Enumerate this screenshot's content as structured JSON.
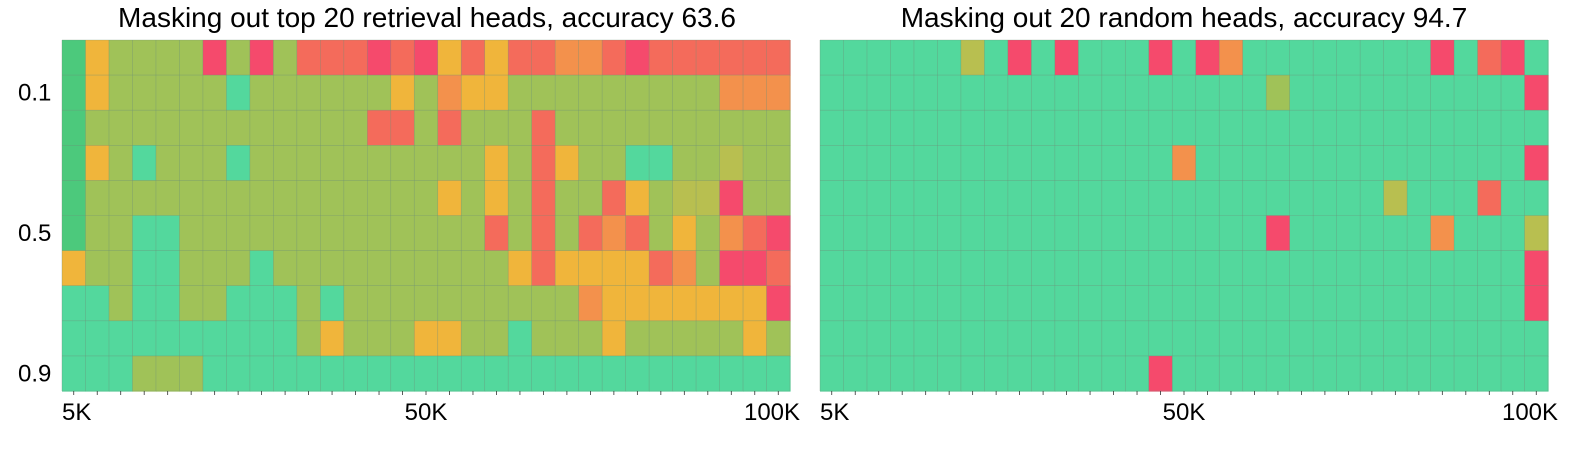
{
  "figure": {
    "panel1_title": "Masking out top 20 retrieval heads, accuracy 63.6",
    "panel2_title": "Masking out 20 random heads, accuracy 94.7"
  },
  "palette": {
    "1": "#53d89d",
    "2": "#4cc97c",
    "3": "#a0c258",
    "4": "#f0b53b",
    "5": "#f3914c",
    "6": "#f46b5b",
    "7": "#f54a6c",
    "8": "#b8bf50",
    "grid": "#6e8f78"
  },
  "chart_data": [
    {
      "type": "heatmap",
      "title": "Masking out top 20 retrieval heads, accuracy 63.6",
      "n_cols": 31,
      "n_rows": 10,
      "x_tick_labels": [
        "5K",
        "50K",
        "100K"
      ],
      "x_tick_cols": [
        0,
        15,
        30
      ],
      "y_tick_labels": [
        "0.1",
        "0.5",
        "0.9"
      ],
      "y_tick_rows": [
        1,
        5,
        9
      ],
      "grid": true,
      "value_encoding": "color codes 1-8 mapped via palette (1 = high score/green, 7 = low score/red)",
      "values": [
        [
          2,
          4,
          3,
          3,
          3,
          3,
          7,
          3,
          7,
          3,
          6,
          6,
          6,
          7,
          6,
          7,
          4,
          6,
          4,
          6,
          6,
          5,
          5,
          6,
          7,
          6,
          6,
          6,
          6,
          6,
          6
        ],
        [
          2,
          4,
          3,
          3,
          3,
          3,
          3,
          1,
          3,
          3,
          3,
          3,
          3,
          3,
          4,
          3,
          5,
          4,
          4,
          3,
          3,
          3,
          3,
          3,
          3,
          3,
          3,
          3,
          5,
          5,
          5
        ],
        [
          2,
          3,
          3,
          3,
          3,
          3,
          3,
          3,
          3,
          3,
          3,
          3,
          3,
          6,
          6,
          3,
          6,
          3,
          3,
          3,
          6,
          3,
          3,
          3,
          3,
          3,
          3,
          3,
          3,
          3,
          3
        ],
        [
          2,
          4,
          3,
          1,
          3,
          3,
          3,
          1,
          3,
          3,
          3,
          3,
          3,
          3,
          3,
          3,
          3,
          3,
          4,
          3,
          6,
          4,
          3,
          3,
          1,
          1,
          3,
          3,
          8,
          3,
          3
        ],
        [
          2,
          3,
          3,
          3,
          3,
          3,
          3,
          3,
          3,
          3,
          3,
          3,
          3,
          3,
          3,
          3,
          4,
          3,
          4,
          3,
          6,
          3,
          3,
          6,
          4,
          3,
          8,
          8,
          7,
          3,
          3
        ],
        [
          2,
          3,
          3,
          1,
          1,
          3,
          3,
          3,
          3,
          3,
          3,
          3,
          3,
          3,
          3,
          3,
          3,
          3,
          6,
          3,
          6,
          3,
          6,
          5,
          6,
          3,
          4,
          3,
          5,
          6,
          7
        ],
        [
          4,
          3,
          3,
          1,
          1,
          3,
          3,
          3,
          1,
          3,
          3,
          3,
          3,
          3,
          3,
          3,
          3,
          3,
          3,
          4,
          6,
          4,
          4,
          4,
          4,
          6,
          5,
          3,
          7,
          7,
          6
        ],
        [
          1,
          1,
          3,
          1,
          1,
          3,
          3,
          1,
          1,
          1,
          3,
          1,
          3,
          3,
          3,
          3,
          3,
          3,
          3,
          3,
          3,
          3,
          5,
          4,
          4,
          4,
          4,
          4,
          4,
          4,
          7
        ],
        [
          1,
          1,
          1,
          1,
          1,
          1,
          1,
          1,
          1,
          1,
          3,
          4,
          3,
          3,
          3,
          4,
          4,
          3,
          3,
          1,
          3,
          3,
          3,
          4,
          3,
          3,
          3,
          3,
          3,
          4,
          3
        ],
        [
          1,
          1,
          1,
          3,
          3,
          3,
          1,
          1,
          1,
          1,
          1,
          1,
          1,
          1,
          1,
          1,
          1,
          1,
          1,
          1,
          1,
          1,
          1,
          1,
          1,
          1,
          1,
          1,
          1,
          1,
          1
        ]
      ]
    },
    {
      "type": "heatmap",
      "title": "Masking out 20 random heads, accuracy 94.7",
      "n_cols": 31,
      "n_rows": 10,
      "x_tick_labels": [
        "5K",
        "50K",
        "100K"
      ],
      "x_tick_cols": [
        0,
        15,
        30
      ],
      "grid": true,
      "value_encoding": "color codes 1-8 mapped via palette (1 = high score/green, 7 = low score/red)",
      "values": [
        [
          1,
          1,
          1,
          1,
          1,
          1,
          8,
          1,
          7,
          1,
          7,
          1,
          1,
          1,
          7,
          1,
          7,
          5,
          1,
          1,
          1,
          1,
          1,
          1,
          1,
          1,
          7,
          1,
          6,
          7,
          1
        ],
        [
          1,
          1,
          1,
          1,
          1,
          1,
          1,
          1,
          1,
          1,
          1,
          1,
          1,
          1,
          1,
          1,
          1,
          1,
          1,
          3,
          1,
          1,
          1,
          1,
          1,
          1,
          1,
          1,
          1,
          1,
          7
        ],
        [
          1,
          1,
          1,
          1,
          1,
          1,
          1,
          1,
          1,
          1,
          1,
          1,
          1,
          1,
          1,
          1,
          1,
          1,
          1,
          1,
          1,
          1,
          1,
          1,
          1,
          1,
          1,
          1,
          1,
          1,
          1
        ],
        [
          1,
          1,
          1,
          1,
          1,
          1,
          1,
          1,
          1,
          1,
          1,
          1,
          1,
          1,
          1,
          5,
          1,
          1,
          1,
          1,
          1,
          1,
          1,
          1,
          1,
          1,
          1,
          1,
          1,
          1,
          7
        ],
        [
          1,
          1,
          1,
          1,
          1,
          1,
          1,
          1,
          1,
          1,
          1,
          1,
          1,
          1,
          1,
          1,
          1,
          1,
          1,
          1,
          1,
          1,
          1,
          1,
          8,
          1,
          1,
          1,
          6,
          1,
          1
        ],
        [
          1,
          1,
          1,
          1,
          1,
          1,
          1,
          1,
          1,
          1,
          1,
          1,
          1,
          1,
          1,
          1,
          1,
          1,
          1,
          7,
          1,
          1,
          1,
          1,
          1,
          1,
          5,
          1,
          1,
          1,
          8
        ],
        [
          1,
          1,
          1,
          1,
          1,
          1,
          1,
          1,
          1,
          1,
          1,
          1,
          1,
          1,
          1,
          1,
          1,
          1,
          1,
          1,
          1,
          1,
          1,
          1,
          1,
          1,
          1,
          1,
          1,
          1,
          7
        ],
        [
          1,
          1,
          1,
          1,
          1,
          1,
          1,
          1,
          1,
          1,
          1,
          1,
          1,
          1,
          1,
          1,
          1,
          1,
          1,
          1,
          1,
          1,
          1,
          1,
          1,
          1,
          1,
          1,
          1,
          1,
          7
        ],
        [
          1,
          1,
          1,
          1,
          1,
          1,
          1,
          1,
          1,
          1,
          1,
          1,
          1,
          1,
          1,
          1,
          1,
          1,
          1,
          1,
          1,
          1,
          1,
          1,
          1,
          1,
          1,
          1,
          1,
          1,
          1
        ],
        [
          1,
          1,
          1,
          1,
          1,
          1,
          1,
          1,
          1,
          1,
          1,
          1,
          1,
          1,
          7,
          1,
          1,
          1,
          1,
          1,
          1,
          1,
          1,
          1,
          1,
          1,
          1,
          1,
          1,
          1,
          1
        ]
      ]
    }
  ]
}
